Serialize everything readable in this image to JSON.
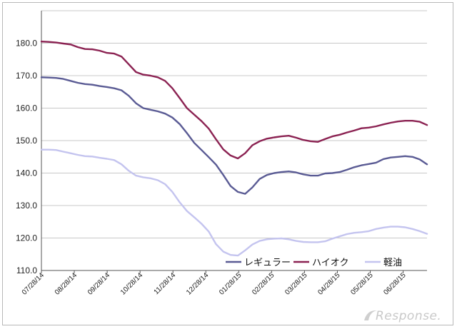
{
  "chart_data": {
    "type": "line",
    "title": "",
    "xlabel": "",
    "ylabel": "",
    "ylim": [
      110,
      190
    ],
    "yticks": [
      "110.0",
      "120.0",
      "130.0",
      "140.0",
      "150.0",
      "160.0",
      "170.0",
      "180.0"
    ],
    "xtick_labels": [
      "07/28/14",
      "08/28/14",
      "09/28/14",
      "10/28/14",
      "11/28/14",
      "12/28/14",
      "01/28/15",
      "02/28/15",
      "03/28/15",
      "04/28/15",
      "05/28/15",
      "06/28/15"
    ],
    "grid": true,
    "legend_position": "bottom-right",
    "series": [
      {
        "name": "レギュラー",
        "color": "#5a5b94",
        "values": [
          169.5,
          169.4,
          169.3,
          169.0,
          168.4,
          167.8,
          167.4,
          167.2,
          166.8,
          166.5,
          166.1,
          165.5,
          163.8,
          161.5,
          160.0,
          159.5,
          159.0,
          158.3,
          157.1,
          155.1,
          152.3,
          149.3,
          147.1,
          144.9,
          142.6,
          139.4,
          136.0,
          134.2,
          133.6,
          135.6,
          138.2,
          139.4,
          140.0,
          140.3,
          140.5,
          140.2,
          139.6,
          139.2,
          139.2,
          139.9,
          140.0,
          140.3,
          141.0,
          141.8,
          142.4,
          142.8,
          143.2,
          144.3,
          144.8,
          145.0,
          145.2,
          145.0,
          144.2,
          142.7
        ]
      },
      {
        "name": "ハイオク",
        "color": "#8b2252",
        "values": [
          180.5,
          180.4,
          180.2,
          179.9,
          179.6,
          178.8,
          178.2,
          178.1,
          177.7,
          177.0,
          176.8,
          175.9,
          173.5,
          171.1,
          170.3,
          170.0,
          169.5,
          168.4,
          166.1,
          163.1,
          160.0,
          158.0,
          156.0,
          153.7,
          150.4,
          147.3,
          145.4,
          144.5,
          146.1,
          148.6,
          149.8,
          150.6,
          151.0,
          151.3,
          151.5,
          150.9,
          150.2,
          149.8,
          149.6,
          150.5,
          151.3,
          151.8,
          152.5,
          153.1,
          153.8,
          154.0,
          154.4,
          155.0,
          155.5,
          155.9,
          156.1,
          156.1,
          155.8,
          154.8
        ]
      },
      {
        "name": "軽油",
        "color": "#c4c4ef",
        "values": [
          147.2,
          147.2,
          147.1,
          146.6,
          146.1,
          145.6,
          145.2,
          145.1,
          144.7,
          144.4,
          144.0,
          142.7,
          140.7,
          139.2,
          138.7,
          138.4,
          137.8,
          136.6,
          134.2,
          131.0,
          128.3,
          126.4,
          124.4,
          122.0,
          118.1,
          115.8,
          114.8,
          114.6,
          116.2,
          118.0,
          119.1,
          119.6,
          119.8,
          119.9,
          119.6,
          119.1,
          118.8,
          118.7,
          118.7,
          119.0,
          119.8,
          120.5,
          121.2,
          121.6,
          121.8,
          122.1,
          122.8,
          123.2,
          123.5,
          123.5,
          123.3,
          122.8,
          122.1,
          121.3
        ]
      }
    ]
  },
  "watermark": {
    "text": "Response."
  }
}
